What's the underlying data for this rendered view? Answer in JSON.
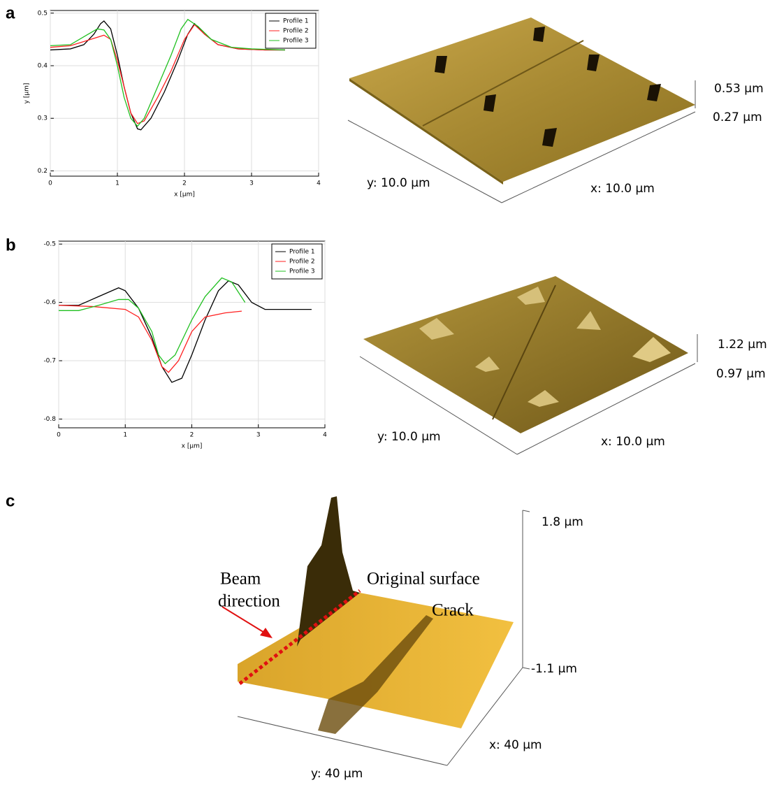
{
  "panel_labels": [
    "a",
    "b",
    "c"
  ],
  "chart_data": [
    {
      "type": "line",
      "ylabel": "y [µm]",
      "xlabel": "x [µm]",
      "xlim": [
        0,
        4
      ],
      "xticks": [
        0,
        1,
        2,
        3,
        4
      ],
      "ylim": [
        0.19,
        0.505
      ],
      "yticks": [
        0.2,
        0.3,
        0.4,
        0.5
      ],
      "grid": true,
      "legend": "upper right",
      "series": [
        {
          "name": "Profile 1",
          "color": "#000000",
          "x": [
            0,
            0.3,
            0.5,
            0.65,
            0.75,
            0.8,
            0.9,
            1.0,
            1.1,
            1.2,
            1.3,
            1.35,
            1.5,
            1.7,
            1.9,
            2.05,
            2.15,
            2.3,
            2.5,
            2.8,
            3.2,
            3.5
          ],
          "values": [
            0.43,
            0.432,
            0.44,
            0.46,
            0.48,
            0.485,
            0.47,
            0.42,
            0.36,
            0.31,
            0.28,
            0.278,
            0.3,
            0.35,
            0.41,
            0.46,
            0.48,
            0.46,
            0.44,
            0.432,
            0.43,
            0.43
          ]
        },
        {
          "name": "Profile 2",
          "color": "#ff2020",
          "x": [
            0,
            0.3,
            0.6,
            0.8,
            0.9,
            1.0,
            1.1,
            1.2,
            1.3,
            1.4,
            1.6,
            1.8,
            2.0,
            2.15,
            2.3,
            2.5,
            2.8,
            3.2,
            3.5
          ],
          "values": [
            0.435,
            0.438,
            0.45,
            0.458,
            0.45,
            0.41,
            0.36,
            0.31,
            0.29,
            0.295,
            0.34,
            0.39,
            0.45,
            0.478,
            0.46,
            0.44,
            0.432,
            0.43,
            0.43
          ]
        },
        {
          "name": "Profile 3",
          "color": "#20c020",
          "x": [
            0,
            0.3,
            0.5,
            0.7,
            0.8,
            0.9,
            1.0,
            1.1,
            1.2,
            1.3,
            1.4,
            1.6,
            1.8,
            1.95,
            2.05,
            2.2,
            2.4,
            2.7,
            3.0,
            3.5
          ],
          "values": [
            0.438,
            0.44,
            0.455,
            0.47,
            0.468,
            0.45,
            0.4,
            0.34,
            0.3,
            0.285,
            0.3,
            0.36,
            0.42,
            0.47,
            0.488,
            0.475,
            0.45,
            0.435,
            0.432,
            0.43
          ]
        }
      ]
    },
    {
      "type": "line",
      "xlabel": "x [µm]",
      "xlim": [
        0,
        4
      ],
      "xticks": [
        0,
        1,
        2,
        3,
        4
      ],
      "ylim": [
        -0.815,
        -0.495
      ],
      "yticks": [
        -0.8,
        -0.7,
        -0.6,
        -0.5
      ],
      "grid": true,
      "legend": "upper right",
      "series": [
        {
          "name": "Profile 1",
          "color": "#000000",
          "x": [
            0,
            0.3,
            0.6,
            0.9,
            1.0,
            1.2,
            1.4,
            1.55,
            1.7,
            1.85,
            2.0,
            2.2,
            2.4,
            2.55,
            2.7,
            2.9,
            3.1,
            3.4,
            3.8
          ],
          "values": [
            -0.605,
            -0.605,
            -0.59,
            -0.575,
            -0.58,
            -0.61,
            -0.66,
            -0.71,
            -0.737,
            -0.73,
            -0.69,
            -0.63,
            -0.58,
            -0.563,
            -0.57,
            -0.6,
            -0.612,
            -0.612,
            -0.612
          ]
        },
        {
          "name": "Profile 2",
          "color": "#ff2020",
          "x": [
            0,
            0.5,
            1.0,
            1.2,
            1.4,
            1.55,
            1.65,
            1.8,
            2.0,
            2.2,
            2.5,
            2.75
          ],
          "values": [
            -0.605,
            -0.607,
            -0.612,
            -0.625,
            -0.665,
            -0.71,
            -0.72,
            -0.7,
            -0.65,
            -0.625,
            -0.618,
            -0.615
          ]
        },
        {
          "name": "Profile 3",
          "color": "#20c020",
          "x": [
            0,
            0.3,
            0.6,
            0.9,
            1.05,
            1.2,
            1.4,
            1.5,
            1.6,
            1.75,
            2.0,
            2.2,
            2.45,
            2.6,
            2.8
          ],
          "values": [
            -0.614,
            -0.614,
            -0.605,
            -0.595,
            -0.595,
            -0.61,
            -0.65,
            -0.69,
            -0.705,
            -0.69,
            -0.63,
            -0.59,
            -0.558,
            -0.565,
            -0.6
          ]
        }
      ]
    }
  ],
  "surfaces": [
    {
      "z_top": "0.53 µm",
      "z_bottom": "0.27 µm",
      "y_label": "y: 10.0 µm",
      "x_label": "x: 10.0 µm"
    },
    {
      "z_top": "1.22 µm",
      "z_bottom": "0.97 µm",
      "y_label": "y: 10.0 µm",
      "x_label": "x: 10.0 µm"
    },
    {
      "z_top": "1.8 µm",
      "z_bottom": "-1.1 µm",
      "x_label": "x: 40 µm",
      "y_label": "y: 40 µm",
      "annotations": {
        "beam": [
          "Beam",
          "direction"
        ],
        "surface": "Original surface",
        "crack": "Crack"
      }
    }
  ]
}
